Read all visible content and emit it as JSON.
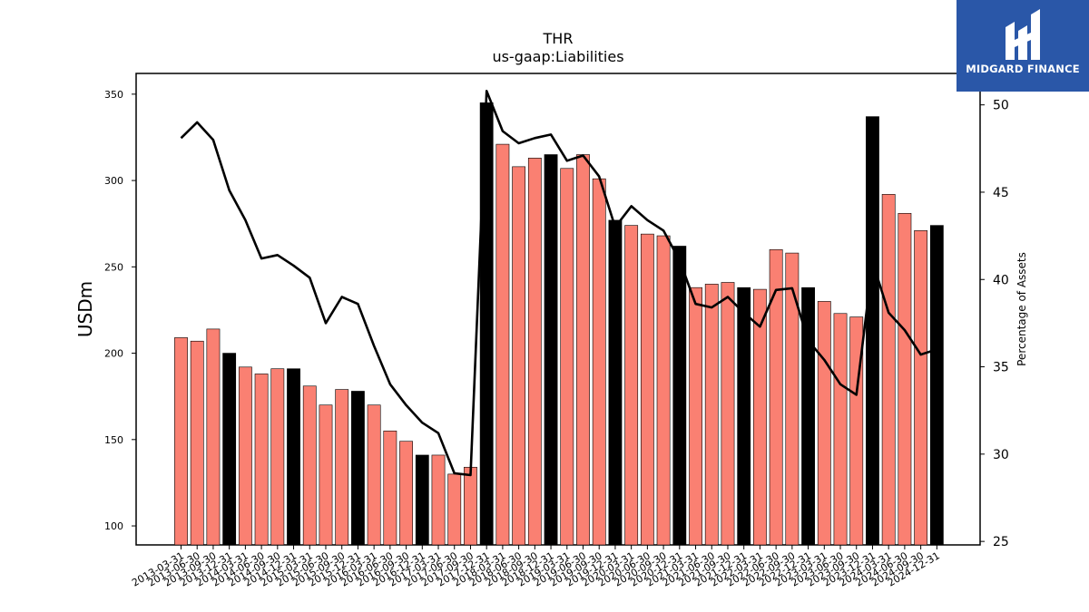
{
  "chart_data": {
    "type": "bar+line",
    "title": "THR",
    "subtitle": "us-gaap:Liabilities",
    "ylabel": "USDm",
    "y2label": "Percentage of Assets",
    "ylim": [
      89,
      362
    ],
    "y2lim": [
      24.8,
      51.8
    ],
    "yticks": [
      100,
      150,
      200,
      250,
      300,
      350
    ],
    "y2ticks": [
      25,
      30,
      35,
      40,
      45,
      50
    ],
    "bar_color": "#fa8072",
    "highlight_color": "#000000",
    "line_color": "#000000",
    "categories": [
      "2013-03-31",
      "2013-06-30",
      "2013-09-30",
      "2013-12-31",
      "2014-03-31",
      "2014-06-30",
      "2014-09-30",
      "2014-12-31",
      "2015-03-31",
      "2015-06-30",
      "2015-09-30",
      "2015-12-31",
      "2016-03-31",
      "2016-06-30",
      "2016-09-30",
      "2016-12-31",
      "2017-03-31",
      "2017-06-30",
      "2017-09-30",
      "2017-12-31",
      "2018-03-31",
      "2018-06-30",
      "2018-09-30",
      "2018-12-31",
      "2019-03-31",
      "2019-06-30",
      "2019-09-30",
      "2019-12-31",
      "2020-03-31",
      "2020-06-30",
      "2020-09-30",
      "2020-12-31",
      "2021-03-31",
      "2021-06-30",
      "2021-09-30",
      "2021-12-31",
      "2022-03-31",
      "2022-06-30",
      "2022-09-30",
      "2022-12-31",
      "2023-03-31",
      "2023-06-30",
      "2023-09-30",
      "2023-12-31",
      "2024-03-31",
      "2024-06-30",
      "2024-09-30",
      "2024-12-31"
    ],
    "series": [
      {
        "name": "USDm",
        "type": "bar",
        "values": [
          209,
          207,
          214,
          200,
          192,
          188,
          191,
          191,
          181,
          170,
          179,
          178,
          170,
          155,
          149,
          141,
          141,
          130,
          134,
          345,
          321,
          308,
          313,
          315,
          307,
          315,
          301,
          277,
          274,
          269,
          268,
          262,
          238,
          240,
          241,
          238,
          237,
          260,
          258,
          238,
          230,
          223,
          221,
          337,
          292,
          281,
          271,
          274
        ]
      },
      {
        "name": "Percentage of Assets",
        "type": "line",
        "values": [
          48.1,
          49.0,
          48.0,
          45.1,
          43.4,
          41.2,
          41.4,
          40.8,
          40.1,
          37.5,
          39.0,
          38.6,
          36.2,
          34.0,
          32.8,
          31.8,
          31.2,
          28.9,
          28.8,
          50.8,
          48.5,
          47.8,
          48.1,
          48.3,
          46.8,
          47.1,
          45.9,
          43.0,
          44.2,
          43.4,
          42.8,
          41.1,
          38.6,
          38.4,
          39.0,
          38.1,
          37.3,
          39.4,
          39.5,
          36.5,
          35.4,
          34.0,
          33.4,
          41.0,
          38.1,
          37.1,
          35.7,
          36.0
        ]
      }
    ]
  },
  "logo": {
    "text": "MIDGARD FINANCE"
  }
}
